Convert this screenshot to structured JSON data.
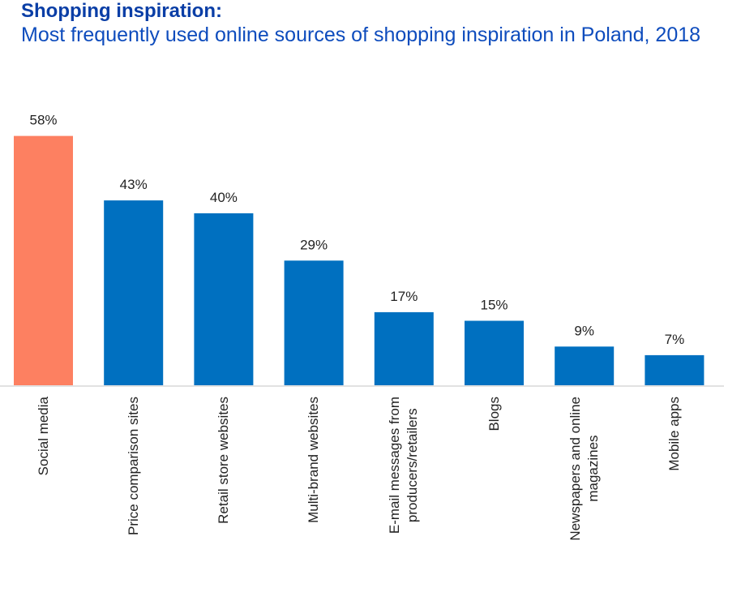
{
  "title": "Shopping inspiration:",
  "subtitle": "Most frequently used online sources of shopping inspiration in Poland, 2018",
  "chart_data": {
    "type": "bar",
    "title": "Shopping inspiration:",
    "subtitle": "Most frequently used online sources of shopping inspiration in Poland, 2018",
    "categories": [
      "Social media",
      "Price comparison sites",
      "Retail store websites",
      "Multi-brand websites",
      "E-mail messages from\nproducers/retailers",
      "Blogs",
      "Newspapers and online\nmagazines",
      "Mobile apps"
    ],
    "values": [
      58,
      43,
      40,
      29,
      17,
      15,
      9,
      7
    ],
    "value_labels": [
      "58%",
      "43%",
      "40%",
      "29%",
      "17%",
      "15%",
      "9%",
      "7%"
    ],
    "unit": "%",
    "ylim": [
      0,
      60
    ],
    "grid": false,
    "xlabel": "",
    "ylabel": "",
    "colors": {
      "highlight": "#fd8061",
      "default": "#0070c0",
      "axis": "#d9d9d9"
    },
    "highlight_index": 0
  }
}
